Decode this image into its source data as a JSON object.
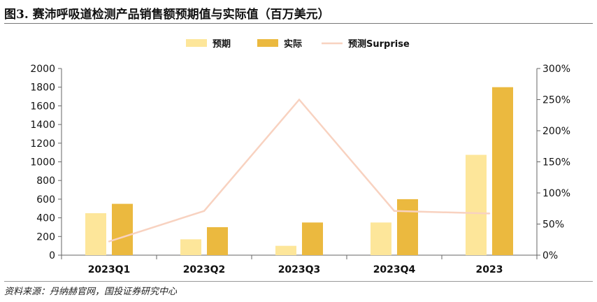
{
  "title": "图3. 赛沛呼吸道检测产品销售额预期值与实际值（百万美元）",
  "source": "资料来源：丹纳赫官网，国投证券研究中心",
  "chart_data": {
    "type": "bar",
    "categories": [
      "2023Q1",
      "2023Q2",
      "2023Q3",
      "2023Q4",
      "2023"
    ],
    "series": [
      {
        "name": "预期",
        "type": "bar",
        "axis": "left",
        "color": "#FDE69A",
        "values": [
          450,
          170,
          100,
          350,
          1075
        ]
      },
      {
        "name": "实际",
        "type": "bar",
        "axis": "left",
        "color": "#EBB93F",
        "values": [
          550,
          300,
          350,
          600,
          1800
        ]
      },
      {
        "name": "预测Surprise",
        "type": "line",
        "axis": "right",
        "color": "#F8D2C0",
        "values": [
          22,
          71,
          250,
          71,
          67
        ]
      }
    ],
    "ylim": [
      0,
      2000
    ],
    "yticks": [
      "0",
      "200",
      "400",
      "600",
      "800",
      "1000",
      "1200",
      "1400",
      "1600",
      "1800",
      "2000"
    ],
    "y2lim": [
      0,
      300
    ],
    "y2ticks": [
      "0%",
      "50%",
      "100%",
      "150%",
      "200%",
      "250%",
      "300%"
    ],
    "legend_position": "top-center",
    "grid": false
  }
}
